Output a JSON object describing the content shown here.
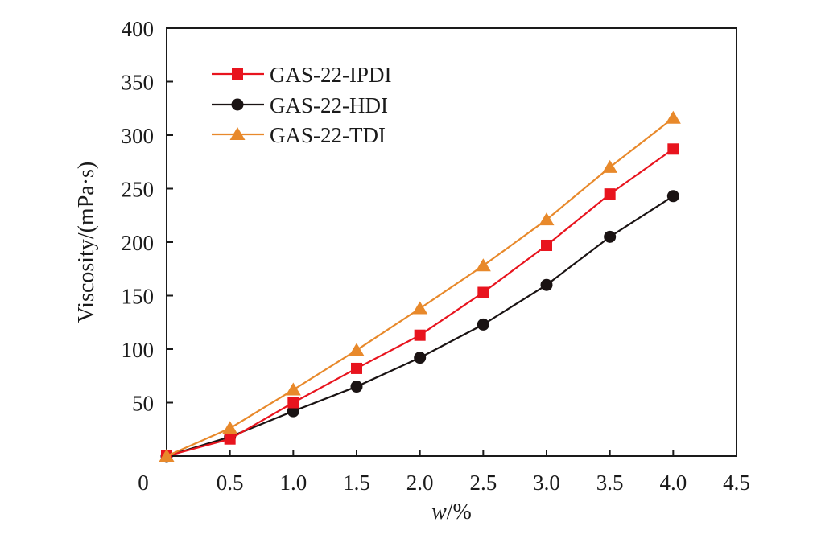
{
  "chart_data": {
    "type": "line",
    "xlabel_main": "w",
    "xlabel_unit": "/%",
    "ylabel": "Viscosity/(mPa·s)",
    "xlim": [
      0,
      4.5
    ],
    "ylim": [
      0,
      400
    ],
    "xticks": [
      0,
      0.5,
      1.0,
      1.5,
      2.0,
      2.5,
      3.0,
      3.5,
      4.0,
      4.5
    ],
    "xtick_labels": [
      "0",
      "0.5",
      "1.0",
      "1.5",
      "2.0",
      "2.5",
      "3.0",
      "3.5",
      "4.0",
      "4.5"
    ],
    "yticks": [
      50,
      100,
      150,
      200,
      250,
      300,
      350,
      400
    ],
    "ytick_labels": [
      "50",
      "100",
      "150",
      "200",
      "250",
      "300",
      "350",
      "400"
    ],
    "grid": false,
    "legend_position": "top-left",
    "x": [
      0,
      0.5,
      1.0,
      1.5,
      2.0,
      2.5,
      3.0,
      3.5,
      4.0
    ],
    "series": [
      {
        "name": "GAS-22-IPDI",
        "marker": "square",
        "color": "#e8141e",
        "values": [
          0,
          16,
          50,
          82,
          113,
          153,
          197,
          245,
          287
        ]
      },
      {
        "name": "GAS-22-HDI",
        "marker": "circle",
        "color": "#1a1313",
        "values": [
          0,
          18,
          42,
          65,
          92,
          123,
          160,
          205,
          243
        ]
      },
      {
        "name": "GAS-22-TDI",
        "marker": "triangle",
        "color": "#e8892b",
        "values": [
          0,
          26,
          62,
          99,
          138,
          178,
          221,
          270,
          316
        ]
      }
    ]
  }
}
